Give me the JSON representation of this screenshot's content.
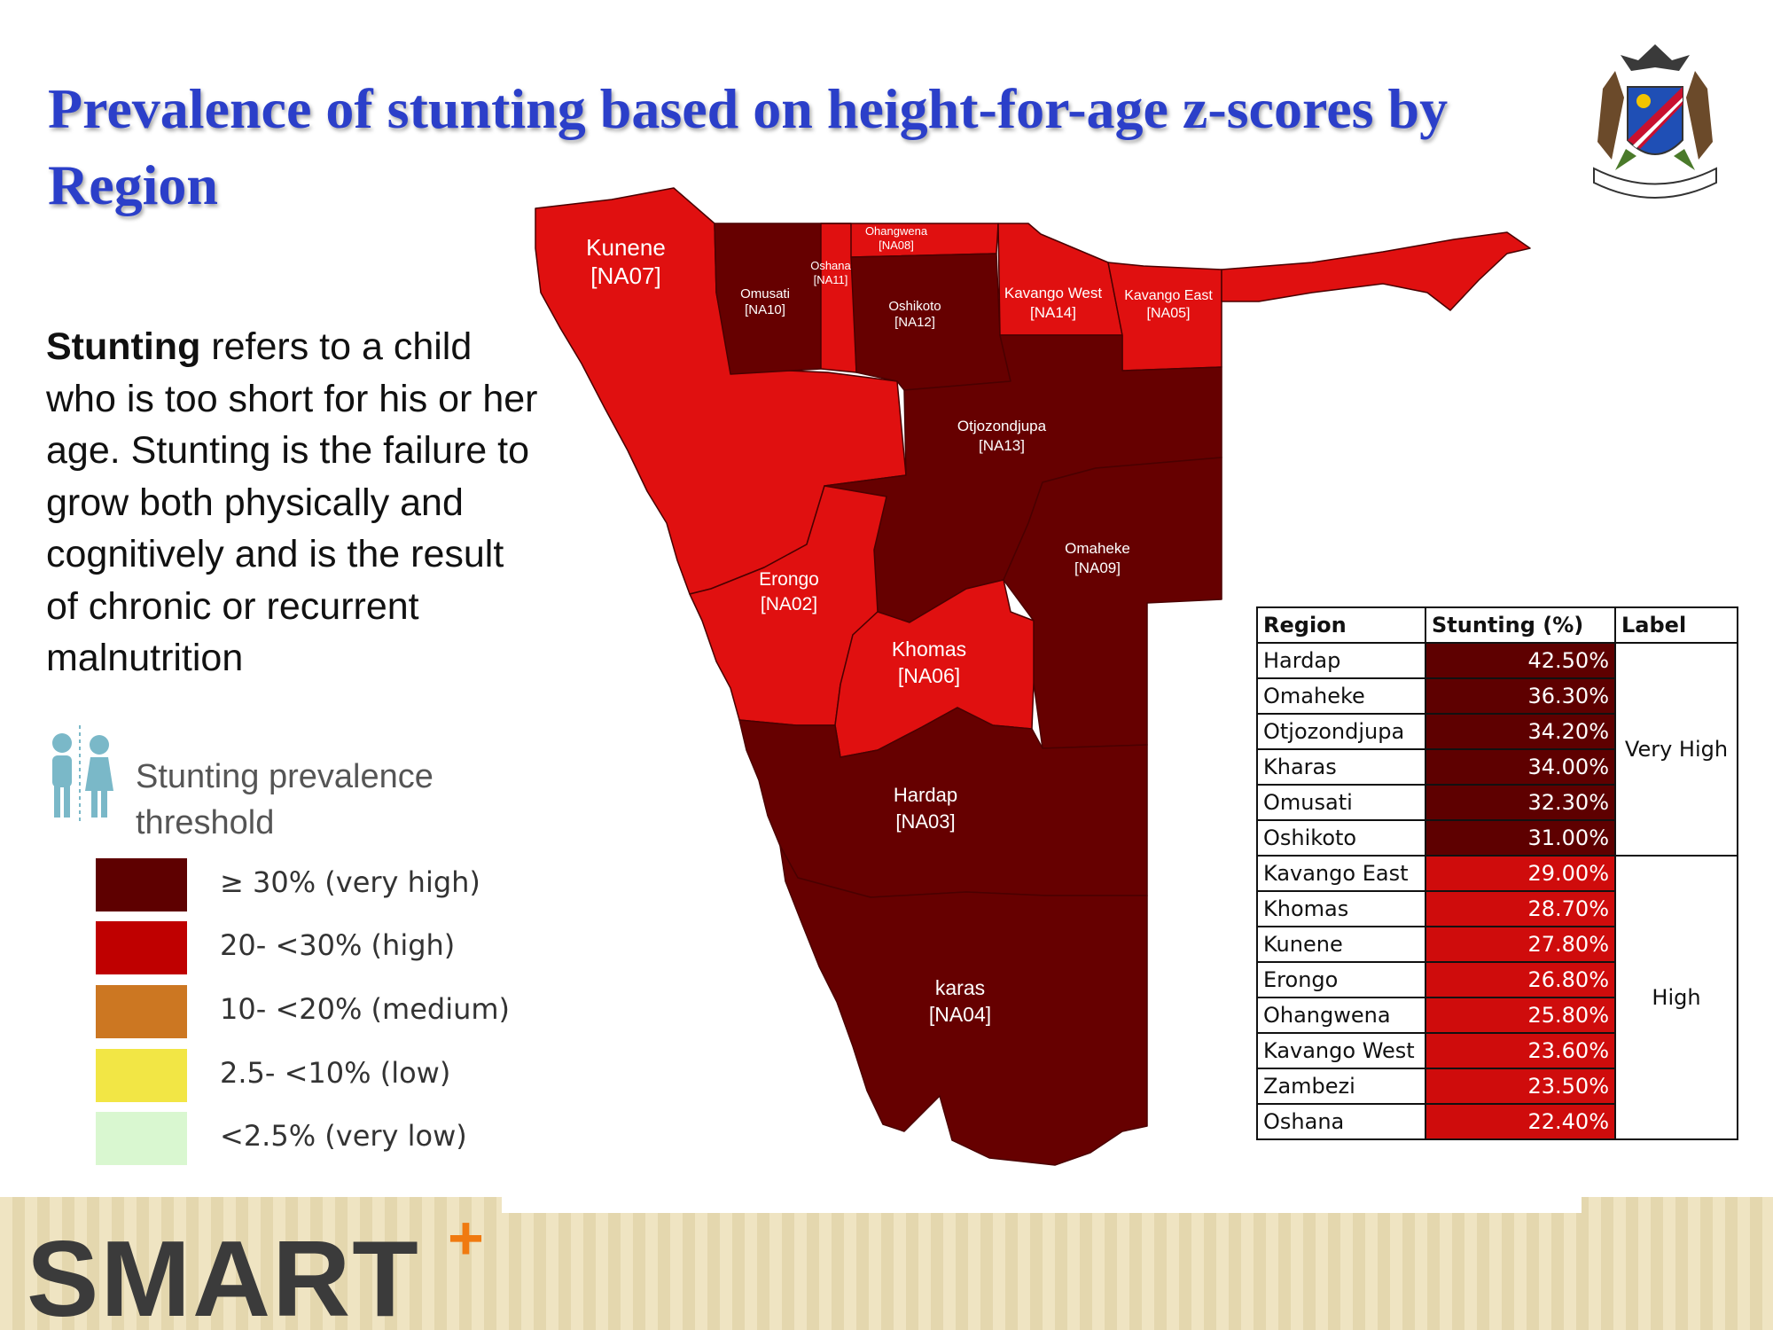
{
  "title": "Prevalence of stunting based on height-for-age z-scores by Region",
  "description": {
    "term": "Stunting",
    "text": " refers to a child who is too short for his or her age. Stunting is the failure to grow both physically and cognitively and is the result of chronic or recurrent malnutrition"
  },
  "legend": {
    "title": "Stunting prevalence threshold",
    "items": [
      {
        "label": "≥ 30% (very high)",
        "color": "#5e0000"
      },
      {
        "label": "20- <30% (high)",
        "color": "#bf0000"
      },
      {
        "label": "10- <20% (medium)",
        "color": "#cc7722"
      },
      {
        "label": "2.5- <10% (low)",
        "color": "#f2e645"
      },
      {
        "label": "<2.5% (very low)",
        "color": "#d9f7d0"
      }
    ]
  },
  "colors": {
    "very_high": "#660000",
    "high": "#e01010",
    "title": "#2b3fc9"
  },
  "map": {
    "regions": [
      {
        "id": "kunene",
        "name": "Kunene",
        "code": "[NA07]",
        "level": "high"
      },
      {
        "id": "omusati",
        "name": "Omusati",
        "code": "[NA10]",
        "level": "very_high"
      },
      {
        "id": "oshana",
        "name": "Oshana",
        "code": "[NA11]",
        "level": "high"
      },
      {
        "id": "ohangwena",
        "name": "Ohangwena",
        "code": "[NA08]",
        "level": "high"
      },
      {
        "id": "oshikoto",
        "name": "Oshikoto",
        "code": "[NA12]",
        "level": "very_high"
      },
      {
        "id": "kavango_west",
        "name": "Kavango West",
        "code": "[NA14]",
        "level": "high"
      },
      {
        "id": "kavango_east",
        "name": "Kavango East",
        "code": "[NA05]",
        "level": "high"
      },
      {
        "id": "otjozondjupa",
        "name": "Otjozondjupa",
        "code": "[NA13]",
        "level": "very_high"
      },
      {
        "id": "omaheke",
        "name": "Omaheke",
        "code": "[NA09]",
        "level": "very_high"
      },
      {
        "id": "erongo",
        "name": "Erongo",
        "code": "[NA02]",
        "level": "high"
      },
      {
        "id": "khomas",
        "name": "Khomas",
        "code": "[NA06]",
        "level": "high"
      },
      {
        "id": "hardap",
        "name": "Hardap",
        "code": "[NA03]",
        "level": "very_high"
      },
      {
        "id": "karas",
        "name": "karas",
        "code": "[NA04]",
        "level": "very_high"
      },
      {
        "id": "zambezi",
        "name": "",
        "code": "",
        "level": "high"
      }
    ]
  },
  "table": {
    "headers": [
      "Region",
      "Stunting (%)",
      "Label"
    ],
    "groups": [
      {
        "label": "Very High",
        "color": "#5e0000",
        "rows": [
          {
            "region": "Hardap",
            "value": "42.50%"
          },
          {
            "region": "Omaheke",
            "value": "36.30%"
          },
          {
            "region": "Otjozondjupa",
            "value": "34.20%"
          },
          {
            "region": "Kharas",
            "value": "34.00%"
          },
          {
            "region": "Omusati",
            "value": "32.30%"
          },
          {
            "region": "Oshikoto",
            "value": "31.00%"
          }
        ]
      },
      {
        "label": "High",
        "color": "#cf0c0c",
        "rows": [
          {
            "region": "Kavango East",
            "value": "29.00%"
          },
          {
            "region": "Khomas",
            "value": "28.70%"
          },
          {
            "region": "Kunene",
            "value": "27.80%"
          },
          {
            "region": "Erongo",
            "value": "26.80%"
          },
          {
            "region": "Ohangwena",
            "value": "25.80%"
          },
          {
            "region": "Kavango West",
            "value": "23.60%"
          },
          {
            "region": "Zambezi",
            "value": "23.50%"
          },
          {
            "region": "Oshana",
            "value": "22.40%"
          }
        ]
      }
    ]
  },
  "footer": {
    "logo_text": "SMART",
    "logo_plus": "+"
  }
}
